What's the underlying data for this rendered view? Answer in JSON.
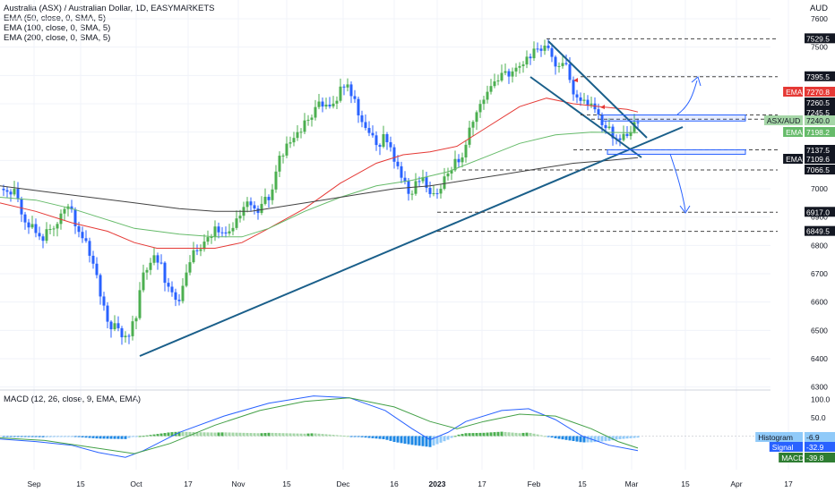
{
  "header": {
    "title": "Australia (ASX) / Australian Dollar, 1D, EASYMARKETS",
    "indicators": [
      "EMA (50, close, 0, SMA, 5)",
      "EMA (100, close, 0, SMA, 5)",
      "EMA (200, close, 0, SMA, 5)"
    ],
    "currency": "AUD"
  },
  "macd_header": "MACD (12, 26, close, 9, EMA, EMA)",
  "colors": {
    "up": "#4caf50",
    "down": "#2962ff",
    "ema50": "#e53935",
    "ema100": "#66bb6a",
    "ema200": "#424242",
    "trendline": "#1a5f8a",
    "grid": "#f0f3fa",
    "arrow": "#2962ff"
  },
  "chart_data": [
    {
      "type": "candlestick",
      "title": "Australia (ASX) / Australian Dollar, 1D, EASYMARKETS",
      "ylabel": "AUD",
      "ylim": [
        6300,
        7650
      ],
      "y_ticks": [
        6300,
        6400,
        6500,
        6600,
        6700,
        6800,
        6900,
        7000,
        7100,
        7200,
        7300,
        7400,
        7500,
        7600
      ],
      "x_ticks": [
        "Sep",
        "15",
        "Oct",
        "17",
        "Nov",
        "15",
        "Dec",
        "16",
        "2023",
        "17",
        "Feb",
        "15",
        "Mar",
        "15",
        "Apr",
        "17"
      ],
      "price_levels": [
        7529.5,
        7395.5,
        7260.5,
        7245.5,
        7137.5,
        7066.5,
        6917.0,
        6849.5
      ],
      "price_tags": [
        {
          "label": "",
          "value": "7529.5"
        },
        {
          "label": "",
          "value": "7395.5"
        },
        {
          "label": "EMA",
          "value": "7270.8"
        },
        {
          "label": "",
          "value": "7260.5"
        },
        {
          "label": "",
          "value": "7245.5"
        },
        {
          "label": "ASX/AUD",
          "value": "7240.0"
        },
        {
          "label": "EMA",
          "value": "7198.2"
        },
        {
          "label": "",
          "value": "7137.5"
        },
        {
          "label": "EMA",
          "value": "7109.6"
        },
        {
          "label": "",
          "value": "7066.5"
        },
        {
          "label": "",
          "value": "6917.0"
        },
        {
          "label": "",
          "value": "6849.5"
        }
      ],
      "grid": true,
      "series": [
        {
          "name": "EMA (50, close, 0, SMA, 5)",
          "last": 7270.8,
          "points": [
            [
              0,
              6950
            ],
            [
              40,
              6920
            ],
            [
              80,
              6880
            ],
            [
              120,
              6850
            ],
            [
              150,
              6810
            ],
            [
              175,
              6790
            ],
            [
              200,
              6790
            ],
            [
              240,
              6790
            ],
            [
              270,
              6810
            ],
            [
              300,
              6860
            ],
            [
              340,
              6930
            ],
            [
              380,
              7020
            ],
            [
              420,
              7090
            ],
            [
              450,
              7120
            ],
            [
              480,
              7130
            ],
            [
              510,
              7150
            ],
            [
              540,
              7210
            ],
            [
              580,
              7290
            ],
            [
              610,
              7320
            ],
            [
              640,
              7300
            ],
            [
              670,
              7290
            ],
            [
              700,
              7280
            ],
            [
              712,
              7270.8
            ]
          ]
        },
        {
          "name": "EMA (100, close, 0, SMA, 5)",
          "last": 7198.2,
          "points": [
            [
              0,
              6970
            ],
            [
              40,
              6960
            ],
            [
              80,
              6930
            ],
            [
              120,
              6890
            ],
            [
              150,
              6860
            ],
            [
              175,
              6850
            ],
            [
              200,
              6840
            ],
            [
              240,
              6830
            ],
            [
              270,
              6830
            ],
            [
              300,
              6860
            ],
            [
              340,
              6920
            ],
            [
              380,
              6970
            ],
            [
              420,
              7010
            ],
            [
              460,
              7030
            ],
            [
              500,
              7060
            ],
            [
              540,
              7110
            ],
            [
              580,
              7160
            ],
            [
              620,
              7190
            ],
            [
              660,
              7200
            ],
            [
              700,
              7198
            ],
            [
              712,
              7198.2
            ]
          ]
        },
        {
          "name": "EMA (200, close, 0, SMA, 5)",
          "last": 7109.6,
          "points": [
            [
              0,
              7010
            ],
            [
              50,
              6990
            ],
            [
              100,
              6970
            ],
            [
              150,
              6950
            ],
            [
              200,
              6930
            ],
            [
              240,
              6920
            ],
            [
              280,
              6920
            ],
            [
              320,
              6940
            ],
            [
              360,
              6960
            ],
            [
              400,
              6980
            ],
            [
              440,
              7000
            ],
            [
              480,
              7010
            ],
            [
              520,
              7030
            ],
            [
              560,
              7050
            ],
            [
              600,
              7070
            ],
            [
              640,
              7090
            ],
            [
              680,
              7100
            ],
            [
              712,
              7109.6
            ]
          ]
        }
      ]
    },
    {
      "type": "macd",
      "title": "MACD (12, 26, close, 9, EMA, EMA)",
      "ylim": [
        -60,
        110
      ],
      "y_ticks": [
        100.0,
        50.0,
        0.0
      ],
      "last_values": {
        "Histogram": -6.9,
        "Signal": -32.9,
        "MACD": -39.8
      },
      "grid": true
    }
  ]
}
